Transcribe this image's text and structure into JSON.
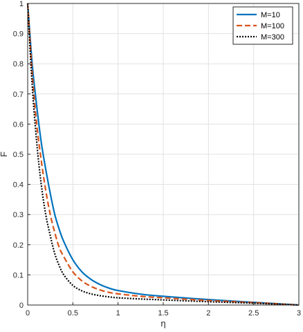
{
  "chart_data": {
    "type": "line",
    "xlabel": "η",
    "ylabel": "F",
    "xlim": [
      0,
      3
    ],
    "ylim": [
      0,
      1
    ],
    "xticks": [
      0,
      0.5,
      1,
      1.5,
      2,
      2.5,
      3
    ],
    "xtick_labels": [
      "0",
      "0.5",
      "1",
      "1.5",
      "2",
      "2.5",
      "3"
    ],
    "yticks": [
      0,
      0.1,
      0.2,
      0.3,
      0.4,
      0.5,
      0.6,
      0.7,
      0.8,
      0.9,
      1
    ],
    "ytick_labels": [
      "0",
      "0.1",
      "0.2",
      "0.3",
      "0.4",
      "0.5",
      "0.6",
      "0.7",
      "0.8",
      "0.9",
      "1"
    ],
    "grid": true,
    "legend_position": "top-right",
    "series": [
      {
        "name": "M=10",
        "color": "#0072BD",
        "style": "solid",
        "x": [
          0,
          0.05,
          0.1,
          0.15,
          0.2,
          0.25,
          0.3,
          0.35,
          0.4,
          0.5,
          0.6,
          0.7,
          0.8,
          0.9,
          1.0,
          1.25,
          1.5,
          2.0,
          2.5,
          3.0
        ],
        "y": [
          1.0,
          0.8,
          0.66,
          0.54,
          0.45,
          0.37,
          0.3,
          0.25,
          0.21,
          0.15,
          0.11,
          0.085,
          0.068,
          0.056,
          0.048,
          0.036,
          0.029,
          0.018,
          0.009,
          0.0
        ]
      },
      {
        "name": "M=100",
        "color": "#D95319",
        "style": "dashed",
        "x": [
          0,
          0.05,
          0.1,
          0.15,
          0.2,
          0.25,
          0.3,
          0.35,
          0.4,
          0.5,
          0.6,
          0.7,
          0.8,
          0.9,
          1.0,
          1.25,
          1.5,
          2.0,
          2.5,
          3.0
        ],
        "y": [
          1.0,
          0.77,
          0.6,
          0.48,
          0.38,
          0.3,
          0.24,
          0.19,
          0.16,
          0.11,
          0.08,
          0.062,
          0.05,
          0.042,
          0.037,
          0.029,
          0.024,
          0.015,
          0.008,
          0.0
        ]
      },
      {
        "name": "M=300",
        "color": "#000000",
        "style": "dotted",
        "x": [
          0,
          0.05,
          0.1,
          0.15,
          0.2,
          0.25,
          0.3,
          0.35,
          0.4,
          0.5,
          0.6,
          0.7,
          0.8,
          0.9,
          1.0,
          1.25,
          1.5,
          2.0,
          2.5,
          3.0
        ],
        "y": [
          1.0,
          0.73,
          0.54,
          0.4,
          0.3,
          0.23,
          0.17,
          0.13,
          0.1,
          0.065,
          0.047,
          0.037,
          0.031,
          0.027,
          0.024,
          0.02,
          0.017,
          0.011,
          0.006,
          0.0
        ]
      }
    ]
  }
}
